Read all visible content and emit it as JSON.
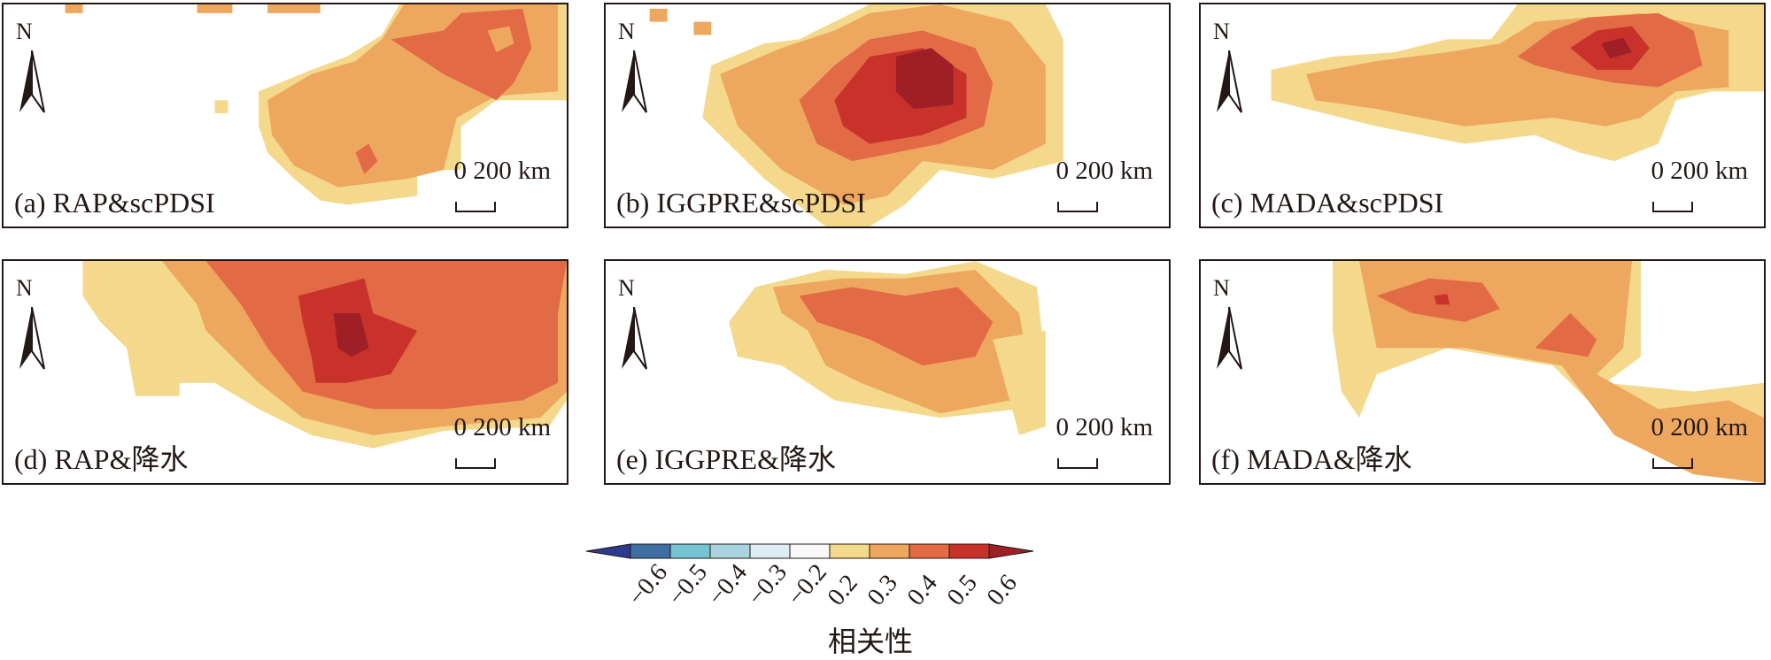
{
  "panels": [
    {
      "label": "(a) RAP&scPDSI",
      "scale": "0 200 km",
      "north": "N"
    },
    {
      "label": "(b) IGGPRE&scPDSI",
      "scale": "0 200 km",
      "north": "N"
    },
    {
      "label": "(c) MADA&scPDSI",
      "scale": "0 200 km",
      "north": "N"
    },
    {
      "label": "(d) RAP&降水",
      "scale": "0 200 km",
      "north": "N"
    },
    {
      "label": "(e) IGGPRE&降水",
      "scale": "0 200 km",
      "north": "N"
    },
    {
      "label": "(f) MADA&降水",
      "scale": "0 200 km",
      "north": "N"
    }
  ],
  "colorbar": {
    "title": "相关性",
    "ticks": [
      "−0.6",
      "−0.5",
      "−0.4",
      "−0.3",
      "−0.2",
      "0.2",
      "0.3",
      "0.4",
      "0.5",
      "0.6"
    ],
    "colors": [
      "#2b3990",
      "#3f6ea5",
      "#74c3d0",
      "#a8d3df",
      "#dcedf3",
      "#f8f8f8",
      "#f4d88b",
      "#eea75e",
      "#e26a45",
      "#c8322b",
      "#9e1f26"
    ]
  }
}
